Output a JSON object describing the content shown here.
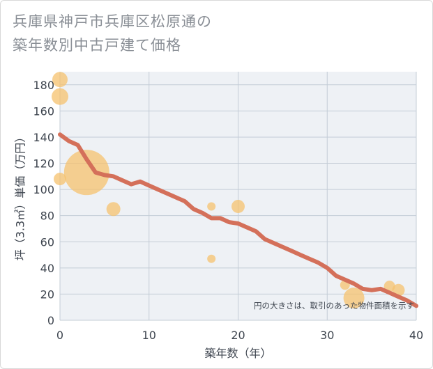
{
  "title": {
    "line1": "兵庫県神戸市兵庫区松原通の",
    "line2": "築年数別中古戸建て価格"
  },
  "colors": {
    "plot_bg": "#eef1f5",
    "grid": "#c3ccd6",
    "bubble": "#f5c16e",
    "line": "#d4705a"
  },
  "chart_data": {
    "type": "scatter",
    "title": "兵庫県神戸市兵庫区松原通の築年数別中古戸建て価格",
    "xlabel": "築年数（年）",
    "ylabel": "坪（3.3㎡）単価（万円）",
    "xlim": [
      0,
      40
    ],
    "ylim": [
      0,
      190
    ],
    "xticks": [
      0,
      10,
      20,
      30,
      40
    ],
    "yticks": [
      0,
      20,
      40,
      60,
      80,
      100,
      120,
      140,
      160,
      180
    ],
    "note": "円の大きさは、取引のあった物件面積を示す",
    "bubbles": [
      {
        "x": 0,
        "y": 184,
        "size": 2.2
      },
      {
        "x": 0,
        "y": 171,
        "size": 2.4
      },
      {
        "x": 0,
        "y": 108,
        "size": 1.8
      },
      {
        "x": 3,
        "y": 113,
        "size": 6.5
      },
      {
        "x": 6,
        "y": 85,
        "size": 2.0
      },
      {
        "x": 17,
        "y": 87,
        "size": 1.2
      },
      {
        "x": 17,
        "y": 47,
        "size": 1.2
      },
      {
        "x": 20,
        "y": 87,
        "size": 1.9
      },
      {
        "x": 32,
        "y": 27,
        "size": 1.4
      },
      {
        "x": 33,
        "y": 17,
        "size": 3.0
      },
      {
        "x": 37,
        "y": 26,
        "size": 1.6
      },
      {
        "x": 38,
        "y": 23,
        "size": 1.8
      }
    ],
    "line": {
      "x": [
        0,
        1,
        2,
        3,
        4,
        5,
        6,
        7,
        8,
        9,
        10,
        11,
        12,
        13,
        14,
        15,
        16,
        17,
        18,
        19,
        20,
        21,
        22,
        23,
        24,
        25,
        26,
        27,
        28,
        29,
        30,
        31,
        32,
        33,
        34,
        35,
        36,
        37,
        38,
        39,
        40
      ],
      "y": [
        142,
        137,
        134,
        123,
        113,
        111,
        110,
        107,
        104,
        106,
        103,
        100,
        97,
        94,
        91,
        85,
        82,
        78,
        78,
        75,
        74,
        71,
        68,
        62,
        59,
        56,
        53,
        50,
        47,
        44,
        40,
        34,
        31,
        28,
        24,
        23,
        24,
        21,
        18,
        15,
        11
      ]
    }
  }
}
